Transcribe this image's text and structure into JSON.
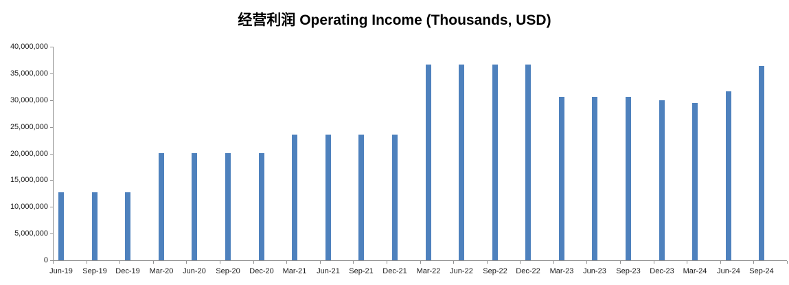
{
  "chart_data": {
    "type": "bar",
    "title": "经营利润 Operating Income (Thousands, USD)",
    "xlabel": "",
    "ylabel": "",
    "legend": false,
    "grid": false,
    "categories": [
      "Jun-19",
      "Sep-19",
      "Dec-19",
      "Mar-20",
      "Jun-20",
      "Sep-20",
      "Dec-20",
      "Mar-21",
      "Jun-21",
      "Sep-21",
      "Dec-21",
      "Mar-22",
      "Jun-22",
      "Sep-22",
      "Dec-22",
      "Mar-23",
      "Jun-23",
      "Sep-23",
      "Dec-23",
      "Mar-24",
      "Jun-24",
      "Sep-24"
    ],
    "values": [
      12700000,
      12700000,
      12700000,
      20100000,
      20100000,
      20100000,
      20100000,
      23500000,
      23500000,
      23500000,
      23500000,
      36700000,
      36700000,
      36700000,
      36700000,
      30600000,
      30600000,
      30600000,
      30000000,
      29400000,
      31600000,
      36400000
    ],
    "ylim": [
      0,
      40000000
    ],
    "y_tick_step": 5000000,
    "y_tick_labels": [
      "0",
      "5,000,000",
      "10,000,000",
      "15,000,000",
      "20,000,000",
      "25,000,000",
      "30,000,000",
      "35,000,000",
      "40,000,000"
    ],
    "bar_color": "#4E81BD",
    "axis_color": "#909090",
    "text_color": "#1a1a1a"
  }
}
